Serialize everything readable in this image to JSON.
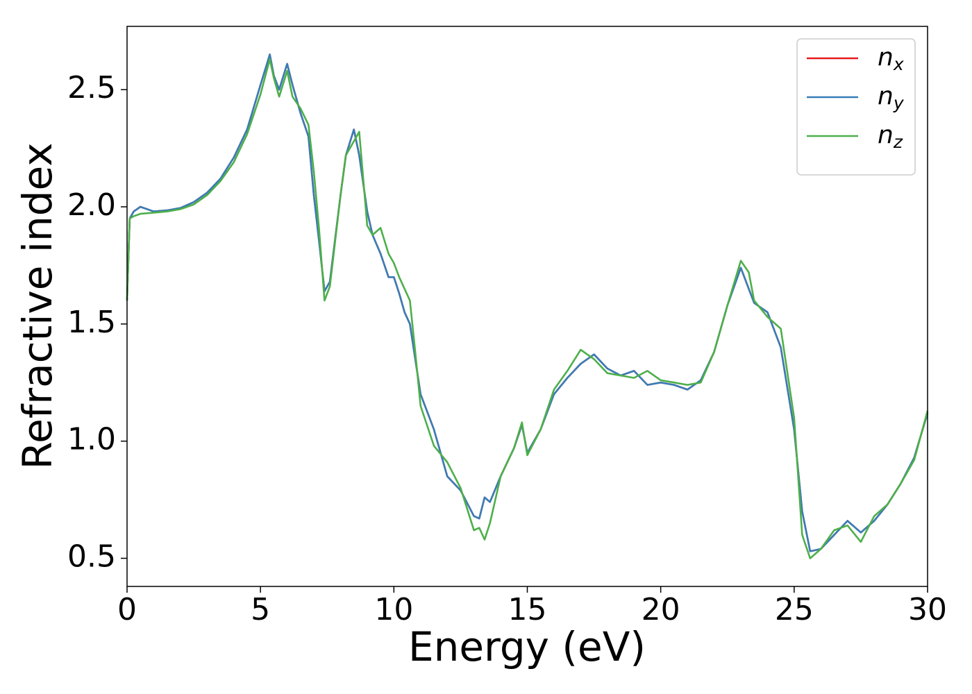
{
  "chart_data": {
    "type": "line",
    "xlabel": "Energy (eV)",
    "ylabel": "Refractive index",
    "x": [
      0,
      0.1,
      0.25,
      0.5,
      1,
      1.5,
      2,
      2.5,
      3,
      3.5,
      4,
      4.5,
      5,
      5.35,
      5.5,
      5.7,
      6,
      6.2,
      6.5,
      6.8,
      7,
      7.2,
      7.4,
      7.6,
      8,
      8.2,
      8.5,
      8.7,
      9,
      9.2,
      9.5,
      9.8,
      10,
      10.2,
      10.4,
      10.6,
      10.8,
      11,
      11.5,
      12,
      12.5,
      13,
      13.2,
      13.4,
      13.6,
      14,
      14.5,
      14.8,
      15,
      15.5,
      16,
      16.5,
      17,
      17.5,
      18,
      18.5,
      19,
      19.5,
      20,
      20.5,
      21,
      21.5,
      22,
      22.5,
      23,
      23.3,
      23.5,
      24,
      24.5,
      25,
      25.3,
      25.6,
      26,
      26.5,
      27,
      27.5,
      28,
      28.5,
      29,
      29.5,
      30
    ],
    "series": [
      {
        "name": "nx",
        "color": "#e41a1c",
        "values": [
          1.6,
          1.95,
          1.98,
          2.0,
          1.98,
          1.985,
          1.995,
          2.02,
          2.06,
          2.12,
          2.21,
          2.33,
          2.52,
          2.65,
          2.56,
          2.5,
          2.61,
          2.52,
          2.4,
          2.3,
          2.05,
          1.85,
          1.64,
          1.68,
          2.05,
          2.22,
          2.33,
          2.22,
          1.98,
          1.88,
          1.8,
          1.7,
          1.7,
          1.63,
          1.55,
          1.5,
          1.35,
          1.2,
          1.05,
          0.85,
          0.79,
          0.68,
          0.67,
          0.76,
          0.74,
          0.85,
          0.97,
          1.07,
          0.95,
          1.05,
          1.2,
          1.27,
          1.33,
          1.37,
          1.31,
          1.28,
          1.3,
          1.24,
          1.25,
          1.24,
          1.22,
          1.26,
          1.38,
          1.58,
          1.74,
          1.65,
          1.59,
          1.55,
          1.4,
          1.05,
          0.7,
          0.53,
          0.54,
          0.6,
          0.66,
          0.61,
          0.66,
          0.73,
          0.82,
          0.93,
          1.12
        ]
      },
      {
        "name": "ny",
        "color": "#377eb8",
        "values": [
          1.6,
          1.95,
          1.98,
          2.0,
          1.98,
          1.985,
          1.995,
          2.02,
          2.06,
          2.12,
          2.21,
          2.33,
          2.52,
          2.65,
          2.56,
          2.5,
          2.61,
          2.52,
          2.4,
          2.3,
          2.05,
          1.85,
          1.64,
          1.68,
          2.05,
          2.22,
          2.33,
          2.22,
          1.98,
          1.88,
          1.8,
          1.7,
          1.7,
          1.63,
          1.55,
          1.5,
          1.35,
          1.2,
          1.05,
          0.85,
          0.79,
          0.68,
          0.67,
          0.76,
          0.74,
          0.85,
          0.97,
          1.07,
          0.95,
          1.05,
          1.2,
          1.27,
          1.33,
          1.37,
          1.31,
          1.28,
          1.3,
          1.24,
          1.25,
          1.24,
          1.22,
          1.26,
          1.38,
          1.58,
          1.74,
          1.65,
          1.59,
          1.55,
          1.4,
          1.05,
          0.7,
          0.53,
          0.54,
          0.6,
          0.66,
          0.61,
          0.66,
          0.73,
          0.82,
          0.93,
          1.12
        ]
      },
      {
        "name": "nz",
        "color": "#4daf4a",
        "values": [
          1.6,
          1.95,
          1.96,
          1.97,
          1.975,
          1.98,
          1.99,
          2.01,
          2.05,
          2.11,
          2.19,
          2.31,
          2.48,
          2.63,
          2.55,
          2.47,
          2.58,
          2.47,
          2.42,
          2.35,
          2.15,
          1.9,
          1.6,
          1.66,
          2.05,
          2.22,
          2.28,
          2.32,
          1.92,
          1.88,
          1.91,
          1.8,
          1.76,
          1.7,
          1.65,
          1.6,
          1.38,
          1.15,
          0.98,
          0.91,
          0.8,
          0.62,
          0.63,
          0.58,
          0.65,
          0.85,
          0.97,
          1.08,
          0.94,
          1.05,
          1.22,
          1.3,
          1.39,
          1.35,
          1.29,
          1.28,
          1.27,
          1.3,
          1.26,
          1.25,
          1.24,
          1.25,
          1.38,
          1.58,
          1.77,
          1.72,
          1.6,
          1.53,
          1.48,
          1.1,
          0.6,
          0.5,
          0.54,
          0.62,
          0.64,
          0.57,
          0.68,
          0.73,
          0.82,
          0.92,
          1.13
        ]
      }
    ],
    "xlim": [
      0,
      30
    ],
    "xticks": [
      0,
      5,
      10,
      15,
      20,
      25,
      30
    ],
    "ylim": [
      0.38,
      2.77
    ],
    "yticks": [
      0.5,
      {
        "value": 1,
        "label": "1.0"
      },
      1.5,
      {
        "value": 2,
        "label": "2.0"
      },
      2.5
    ],
    "grid": false,
    "legend": "upper right"
  }
}
